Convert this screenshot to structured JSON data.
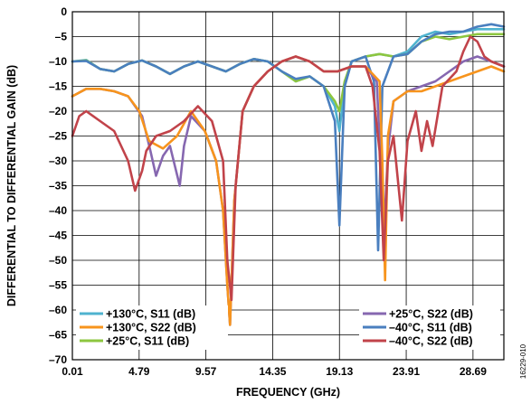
{
  "figure_id": "16229-010",
  "chart_data": {
    "type": "line",
    "title": "",
    "xlabel": "FREQUENCY (GHz)",
    "ylabel": "DIFFERENTIAL TO DIFFERENTIAL GAIN (dB)",
    "xlim": [
      0.01,
      30.9
    ],
    "ylim": [
      -70,
      0
    ],
    "xticks": [
      0.01,
      4.79,
      9.57,
      14.35,
      19.13,
      23.91,
      28.69
    ],
    "xtick_labels": [
      "0.01",
      "4.79",
      "9.57",
      "14.35",
      "19.13",
      "23.91",
      "28.69"
    ],
    "yticks": [
      0,
      -5,
      -10,
      -15,
      -20,
      -25,
      -30,
      -35,
      -40,
      -45,
      -50,
      -55,
      -60,
      -65,
      -70
    ],
    "ytick_labels": [
      "0",
      "–5",
      "–10",
      "–15",
      "–20",
      "–25",
      "–30",
      "–35",
      "–40",
      "–45",
      "–50",
      "–55",
      "–60",
      "–65",
      "–70"
    ],
    "grid": true,
    "legend": [
      {
        "position": "bottom-left",
        "entries": [
          0,
          1,
          2
        ]
      },
      {
        "position": "bottom-right",
        "entries": [
          3,
          4,
          5
        ]
      }
    ],
    "series": [
      {
        "name": "+130°C, S11 (dB)",
        "color": "#4fb3cf",
        "x": [
          0.01,
          1,
          2,
          3,
          4,
          5,
          6,
          7,
          8,
          9,
          10,
          11,
          12,
          13,
          14,
          15,
          16,
          17,
          18,
          18.8,
          19.13,
          19.5,
          20,
          21,
          22,
          23,
          24,
          25,
          26,
          27,
          28,
          29,
          30,
          30.9
        ],
        "y": [
          -10,
          -9.7,
          -11.5,
          -12,
          -10.5,
          -9.8,
          -11,
          -12.5,
          -11,
          -10,
          -11,
          -12,
          -10.5,
          -9.5,
          -10,
          -12,
          -14,
          -13,
          -15,
          -19,
          -24,
          -15,
          -10,
          -9,
          -8.5,
          -9,
          -8,
          -5,
          -4,
          -4.5,
          -4,
          -3.5,
          -3.5,
          -3.5
        ]
      },
      {
        "name": "+130°C, S22 (dB)",
        "color": "#f7941d",
        "x": [
          0.01,
          1,
          2,
          3,
          4,
          4.8,
          5.5,
          6.5,
          7.5,
          8.5,
          9.5,
          10.3,
          10.8,
          11.1,
          11.3,
          11.6,
          12.2,
          13,
          14,
          15,
          16,
          17,
          18,
          19,
          20,
          21,
          22,
          22.2,
          22.4,
          22.6,
          23,
          24,
          25,
          26,
          27,
          28,
          29,
          30,
          30.9
        ],
        "y": [
          -17,
          -15.5,
          -15.5,
          -16,
          -17,
          -20,
          -26,
          -27.5,
          -25,
          -20,
          -24,
          -30,
          -40,
          -55,
          -63,
          -38,
          -20,
          -15,
          -12,
          -10,
          -9,
          -10,
          -12,
          -12,
          -11,
          -11,
          -14,
          -30,
          -54,
          -25,
          -18,
          -16,
          -16,
          -15,
          -14,
          -13,
          -12,
          -11,
          -12
        ]
      },
      {
        "name": "+25°C, S11 (dB)",
        "color": "#8dc63f",
        "x": [
          0.01,
          1,
          2,
          3,
          4,
          5,
          6,
          7,
          8,
          9,
          10,
          11,
          12,
          13,
          14,
          15,
          16,
          17,
          18,
          18.8,
          19.13,
          19.5,
          20,
          21,
          22,
          23,
          24,
          25,
          26,
          27,
          28,
          29,
          30,
          30.9
        ],
        "y": [
          -10,
          -9.8,
          -11.5,
          -12,
          -10.5,
          -9.8,
          -11,
          -12.5,
          -11,
          -10,
          -11,
          -12,
          -10.5,
          -9.5,
          -10,
          -12,
          -14,
          -13,
          -15,
          -18,
          -20,
          -14,
          -10,
          -9,
          -8.5,
          -9,
          -8.5,
          -6,
          -5,
          -5.5,
          -5,
          -4.5,
          -4.5,
          -4.5
        ]
      },
      {
        "name": "+25°C, S22 (dB)",
        "color": "#8667b0",
        "x": [
          0.01,
          1,
          2,
          3,
          4,
          5,
          5.6,
          6,
          6.5,
          7,
          7.7,
          8,
          8.5,
          9.5,
          10.3,
          10.8,
          11.1,
          11.3,
          11.6,
          12.2,
          13,
          14,
          15,
          16,
          17,
          18,
          19,
          20,
          21,
          21.8,
          22,
          22.3,
          22.6,
          23,
          24,
          25,
          26,
          27,
          28,
          29,
          30,
          30.9
        ],
        "y": [
          -17,
          -15.5,
          -15.5,
          -16,
          -17,
          -21,
          -28,
          -33,
          -29,
          -27,
          -35,
          -27,
          -21,
          -24,
          -30,
          -40,
          -55,
          -63,
          -38,
          -20,
          -15,
          -12,
          -10,
          -9,
          -10,
          -12,
          -12,
          -11,
          -11,
          -14,
          -26,
          -46,
          -28,
          -18,
          -16,
          -15,
          -14,
          -12,
          -10,
          -9,
          -10,
          -11
        ]
      },
      {
        "name": "–40°C, S11 (dB)",
        "color": "#4a7fbf",
        "x": [
          0.01,
          1,
          2,
          3,
          4,
          5,
          6,
          7,
          8,
          9,
          10,
          11,
          12,
          13,
          14,
          15,
          16,
          17,
          18,
          18.8,
          19.13,
          19.5,
          20,
          21,
          21.6,
          21.9,
          22.2,
          23,
          24,
          25,
          26,
          27,
          28,
          29,
          30,
          30.9
        ],
        "y": [
          -10,
          -9.9,
          -11.5,
          -12,
          -10.5,
          -9.8,
          -11,
          -12.5,
          -11,
          -10,
          -11,
          -12,
          -10.5,
          -9.5,
          -10,
          -12,
          -13.5,
          -13,
          -15,
          -22,
          -43,
          -15,
          -10,
          -9,
          -14,
          -48,
          -15,
          -9,
          -8.5,
          -6,
          -4.5,
          -4,
          -4,
          -3,
          -2.5,
          -3
        ]
      },
      {
        "name": "–40°C, S22 (dB)",
        "color": "#c1434a",
        "x": [
          0.01,
          0.5,
          1,
          2,
          3,
          4,
          4.5,
          5,
          5.3,
          6,
          7,
          8,
          9,
          10,
          10.8,
          11.1,
          11.4,
          11.7,
          12.2,
          13,
          14,
          15,
          16,
          17,
          18,
          19,
          20,
          21,
          21.5,
          22,
          22.3,
          22.6,
          23,
          23.6,
          24,
          24.6,
          25,
          25.4,
          25.8,
          26.5,
          27.5,
          28,
          28.5,
          29,
          29.5,
          30,
          30.9
        ],
        "y": [
          -25,
          -21,
          -20,
          -22,
          -24,
          -30,
          -36,
          -32,
          -28,
          -25,
          -24,
          -22,
          -19,
          -22,
          -30,
          -50,
          -58,
          -35,
          -20,
          -15,
          -12,
          -10,
          -9,
          -10,
          -12,
          -12,
          -11,
          -11,
          -15,
          -28,
          -50,
          -30,
          -25,
          -42,
          -26,
          -20,
          -28,
          -22,
          -27,
          -15,
          -12,
          -8,
          -5,
          -6,
          -9,
          -10,
          -11
        ]
      }
    ]
  }
}
